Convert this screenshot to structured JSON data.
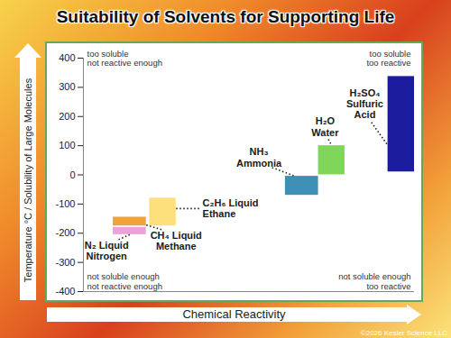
{
  "chart_data": {
    "type": "range_bar",
    "title": "Suitability of Solvents for Supporting Life",
    "xlabel": "Chemical Reactivity",
    "ylabel": "Temperature °C / Solubility of Large Molecules",
    "xlim": [
      0,
      100
    ],
    "xticks": [],
    "ylim": [
      -400,
      400
    ],
    "yticks": [
      -400,
      -300,
      -200,
      -100,
      0,
      100,
      200,
      300,
      400
    ],
    "grid": false,
    "tick_labels": "y",
    "bars": [
      {
        "label": [
          "N₂ Liquid",
          "Nitrogen"
        ],
        "color": "#e9a3d8",
        "x": [
          9,
          19
        ],
        "y": [
          -205,
          -180
        ]
      },
      {
        "label": [
          "CH₄ Liquid",
          "Methane"
        ],
        "color": "#f0a33a",
        "x": [
          9,
          19
        ],
        "y": [
          -175,
          -145
        ]
      },
      {
        "label": [
          "C₂H₆ Liquid",
          "Ethane"
        ],
        "color": "#fde07b",
        "x": [
          20,
          28
        ],
        "y": [
          -175,
          -80
        ]
      },
      {
        "label": [
          "NH₃",
          "Ammonia"
        ],
        "color": "#3d8fb5",
        "x": [
          61,
          71
        ],
        "y": [
          -70,
          -5
        ]
      },
      {
        "label": [
          "H₂O",
          "Water"
        ],
        "color": "#7fd65a",
        "x": [
          71,
          79
        ],
        "y": [
          0,
          100
        ]
      },
      {
        "label": [
          "H₂SO₄",
          "Sulfuric",
          "Acid"
        ],
        "color": "#1b1b9e",
        "x": [
          92,
          100
        ],
        "y": [
          10,
          337
        ]
      }
    ],
    "annotations": {
      "top_left": [
        "too soluble",
        "not reactive enough"
      ],
      "top_right": [
        "too soluble",
        "too reactive"
      ],
      "bottom_left": [
        "not soluble enough",
        "not reactive enough"
      ],
      "bottom_right": [
        "not soluble enough",
        "too reactive"
      ]
    },
    "credit": "©2026 Kesler Science LLC"
  }
}
